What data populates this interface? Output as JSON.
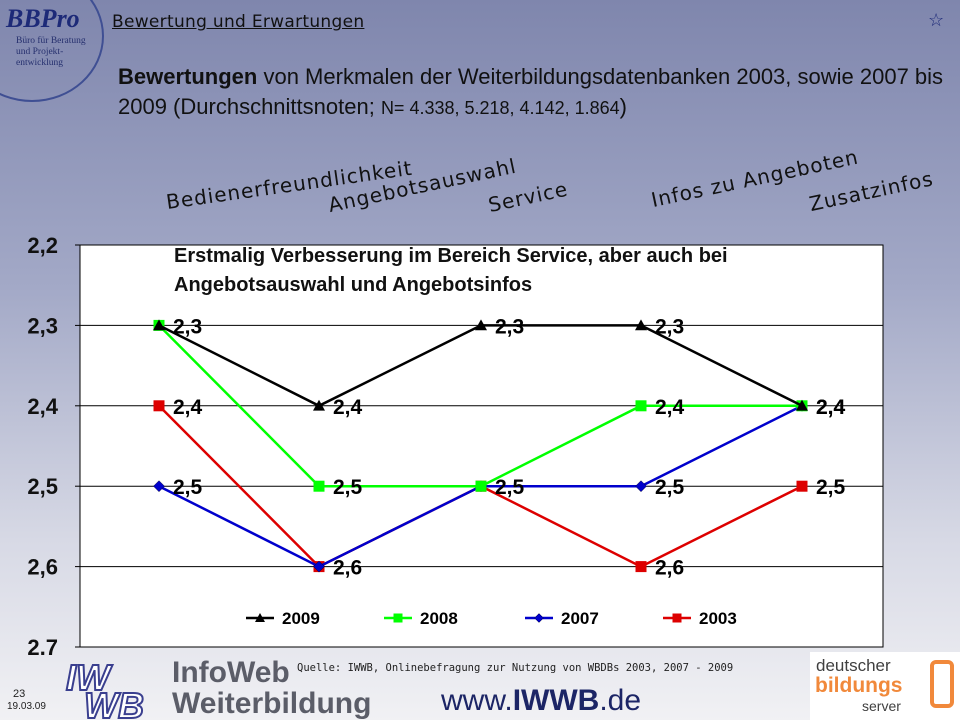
{
  "header": {
    "logo_text": "BBPro",
    "logo_subtitle": [
      "Büro für Beratung",
      "und Projekt-",
      "entwicklung"
    ],
    "topic_title": "Bewertung und Erwartungen",
    "star_symbol": "☆"
  },
  "headline": {
    "bold": "Bewertungen",
    "main": " von Merkmalen der Weiterbildungsdatenbanken 2003, sowie 2007 bis 2009 (Durchschnittsnoten; ",
    "n_part": "N= 4.338, 5.218, 4.142, 1.864",
    "end": ")"
  },
  "callout": {
    "line1": "Erstmalig Verbesserung im Bereich Service,  aber auch bei",
    "line2": "Angebotsauswahl und Angebotsinfos"
  },
  "chart_data": {
    "type": "line",
    "categories": [
      "Bedienerfreundlichkeit",
      "Angebotsauswahl",
      "Service",
      "Infos zu Angeboten",
      "Zusatzinfos"
    ],
    "y_axis": {
      "min": 2.2,
      "max": 2.7,
      "inverted": true,
      "ticks": [
        "2,2",
        "2,3",
        "2,4",
        "2,5",
        "2,6",
        "2,7"
      ],
      "tick_values": [
        2.2,
        2.3,
        2.4,
        2.5,
        2.6,
        2.7
      ]
    },
    "grid": true,
    "legend_position": "bottom",
    "series": [
      {
        "name": "2009",
        "values": [
          2.3,
          2.4,
          2.3,
          2.3,
          2.4
        ],
        "labels": [
          "2,3",
          "2,4",
          "2,3",
          "2,3",
          "2,4"
        ],
        "color": "#000000",
        "marker": "triangle"
      },
      {
        "name": "2008",
        "values": [
          2.3,
          2.5,
          2.5,
          2.4,
          2.4
        ],
        "labels": [
          "",
          "2,5",
          "",
          "2,4",
          ""
        ],
        "color": "#00ff00",
        "marker": "square"
      },
      {
        "name": "2007",
        "values": [
          2.5,
          2.6,
          2.5,
          2.5,
          2.4
        ],
        "labels": [
          "2,5",
          "",
          "2,5",
          "2,5",
          "2,4"
        ],
        "color": "#0000cc",
        "marker": "diamond"
      },
      {
        "name": "2003",
        "values": [
          2.4,
          2.6,
          2.5,
          2.6,
          2.5
        ],
        "labels": [
          "2,4",
          "2,6",
          "",
          "2,6",
          "2,5"
        ],
        "color": "#dd0000",
        "marker": "square"
      }
    ]
  },
  "footer": {
    "source": "Quelle: IWWB, Onlinebefragung zur Nutzung von WBDBs 2003, 2007 - 2009",
    "page_number": "23",
    "date": "19.03.09",
    "iwwb_logo_text": "IWWB",
    "infoweb_line1": "InfoWeb",
    "infoweb_line2": "Weiterbildung",
    "url_pre": "www.",
    "url_bold": "IWWB",
    "url_post": ".de",
    "dbs_line1": "deutscher",
    "dbs_line2": "bildungs",
    "dbs_line3": "server"
  },
  "colors": {
    "background_top": "#7f86ad",
    "background_bottom": "#f1f1f4",
    "plot_area": "#ffffff",
    "dbs_orange": "#f1893b",
    "title_blue": "#1d2a78"
  }
}
